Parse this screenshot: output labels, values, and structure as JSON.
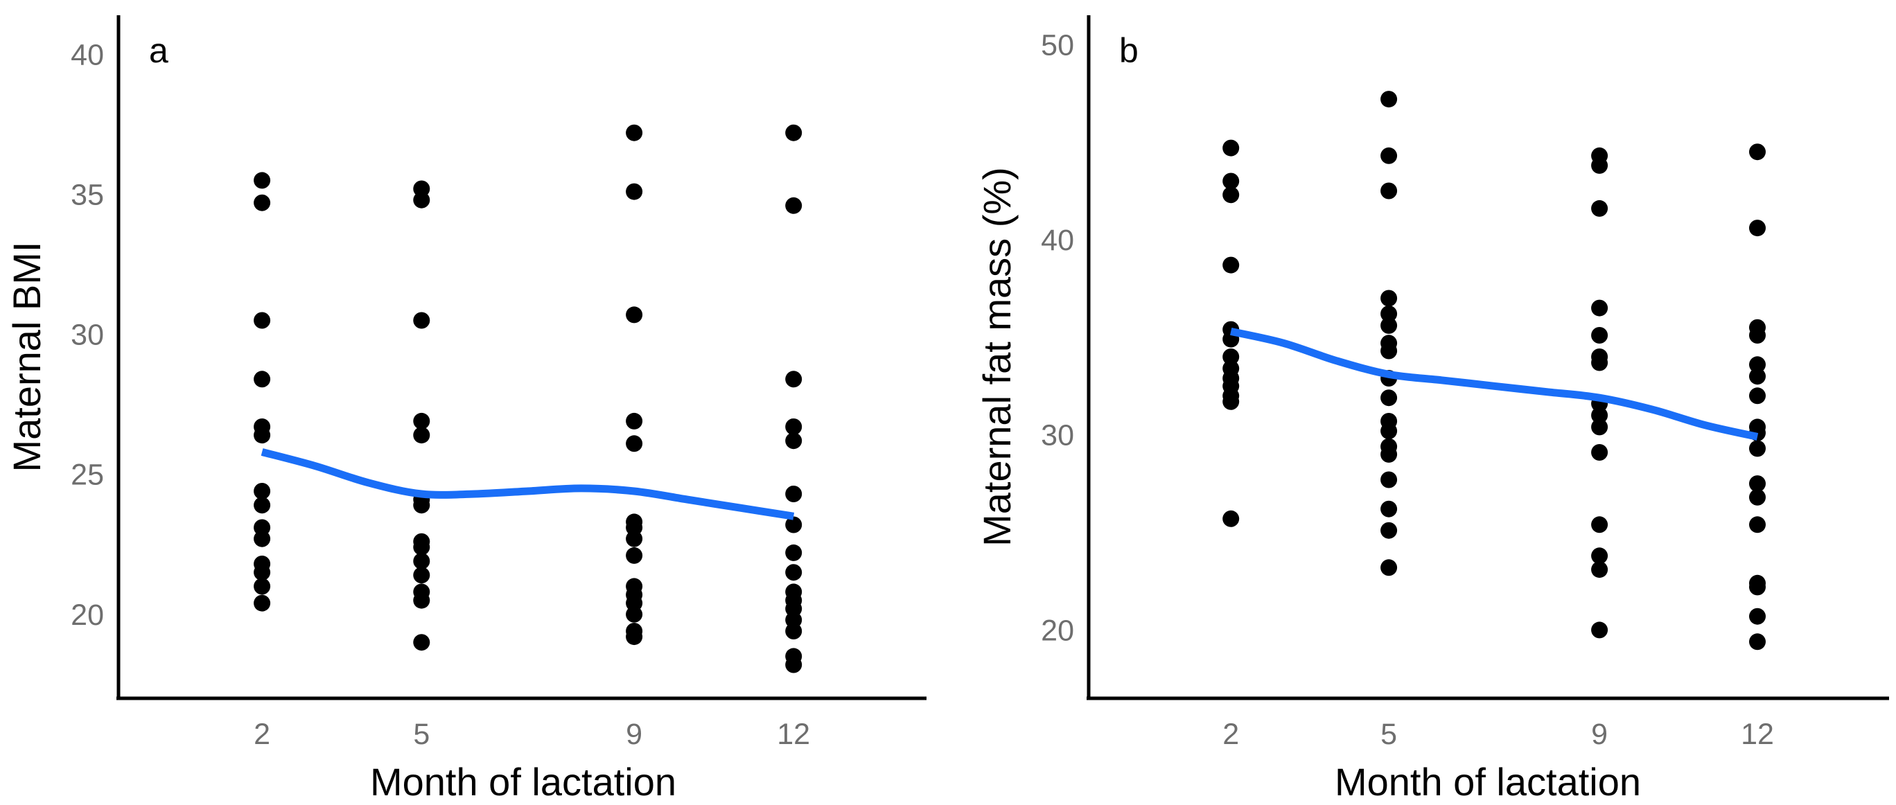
{
  "colors": {
    "points": "#000000",
    "trend": "#1a6ef7",
    "ticks": "#6e6e6e"
  },
  "chart_data": [
    {
      "type": "scatter",
      "panel_label": "a",
      "xlabel": "Month of lactation",
      "ylabel": "Maternal BMI",
      "x_ticks": [
        2,
        5,
        9,
        12
      ],
      "xlim": [
        -0.7,
        14.5
      ],
      "y_ticks": [
        20,
        25,
        30,
        35,
        40
      ],
      "ylim": [
        17.0,
        41.4
      ],
      "points": [
        [
          2,
          35.5
        ],
        [
          2,
          34.7
        ],
        [
          2,
          30.5
        ],
        [
          2,
          28.4
        ],
        [
          2,
          26.7
        ],
        [
          2,
          26.4
        ],
        [
          2,
          24.4
        ],
        [
          2,
          23.9
        ],
        [
          2,
          23.1
        ],
        [
          2,
          22.7
        ],
        [
          2,
          21.8
        ],
        [
          2,
          21.5
        ],
        [
          2,
          21.0
        ],
        [
          2,
          20.4
        ],
        [
          5,
          35.2
        ],
        [
          5,
          34.8
        ],
        [
          5,
          30.5
        ],
        [
          5,
          26.9
        ],
        [
          5,
          26.4
        ],
        [
          5,
          24.1
        ],
        [
          5,
          23.9
        ],
        [
          5,
          22.6
        ],
        [
          5,
          22.4
        ],
        [
          5,
          21.9
        ],
        [
          5,
          21.4
        ],
        [
          5,
          20.8
        ],
        [
          5,
          20.5
        ],
        [
          5,
          19.0
        ],
        [
          9,
          37.2
        ],
        [
          9,
          35.1
        ],
        [
          9,
          30.7
        ],
        [
          9,
          26.9
        ],
        [
          9,
          26.1
        ],
        [
          9,
          23.3
        ],
        [
          9,
          23.1
        ],
        [
          9,
          22.7
        ],
        [
          9,
          22.1
        ],
        [
          9,
          21.0
        ],
        [
          9,
          20.7
        ],
        [
          9,
          20.4
        ],
        [
          9,
          20.0
        ],
        [
          9,
          19.4
        ],
        [
          9,
          19.2
        ],
        [
          12,
          37.2
        ],
        [
          12,
          34.6
        ],
        [
          12,
          28.4
        ],
        [
          12,
          26.7
        ],
        [
          12,
          26.2
        ],
        [
          12,
          24.3
        ],
        [
          12,
          23.2
        ],
        [
          12,
          22.2
        ],
        [
          12,
          21.5
        ],
        [
          12,
          20.8
        ],
        [
          12,
          20.5
        ],
        [
          12,
          20.2
        ],
        [
          12,
          19.8
        ],
        [
          12,
          19.4
        ],
        [
          12,
          18.5
        ],
        [
          12,
          18.2
        ]
      ],
      "trend": {
        "x": [
          2,
          3,
          4,
          5,
          6,
          7,
          8,
          9,
          10,
          11,
          12
        ],
        "y": [
          25.8,
          25.3,
          24.7,
          24.3,
          24.3,
          24.4,
          24.5,
          24.4,
          24.1,
          23.8,
          23.5
        ]
      }
    },
    {
      "type": "scatter",
      "panel_label": "b",
      "xlabel": "Month of lactation",
      "ylabel": "Maternal fat mass (%)",
      "x_ticks": [
        2,
        5,
        9,
        12
      ],
      "xlim": [
        -0.7,
        14.5
      ],
      "y_ticks": [
        20,
        30,
        40,
        50
      ],
      "ylim": [
        16.5,
        51.5
      ],
      "points": [
        [
          2,
          44.7
        ],
        [
          2,
          43.0
        ],
        [
          2,
          42.3
        ],
        [
          2,
          38.7
        ],
        [
          2,
          35.4
        ],
        [
          2,
          34.9
        ],
        [
          2,
          34.0
        ],
        [
          2,
          33.4
        ],
        [
          2,
          32.9
        ],
        [
          2,
          32.5
        ],
        [
          2,
          32.0
        ],
        [
          2,
          31.7
        ],
        [
          2,
          25.7
        ],
        [
          5,
          47.2
        ],
        [
          5,
          44.3
        ],
        [
          5,
          42.5
        ],
        [
          5,
          37.0
        ],
        [
          5,
          36.2
        ],
        [
          5,
          35.6
        ],
        [
          5,
          34.7
        ],
        [
          5,
          34.3
        ],
        [
          5,
          32.9
        ],
        [
          5,
          31.9
        ],
        [
          5,
          30.7
        ],
        [
          5,
          30.2
        ],
        [
          5,
          29.4
        ],
        [
          5,
          29.0
        ],
        [
          5,
          27.7
        ],
        [
          5,
          26.2
        ],
        [
          5,
          25.1
        ],
        [
          5,
          23.2
        ],
        [
          9,
          44.3
        ],
        [
          9,
          43.8
        ],
        [
          9,
          41.6
        ],
        [
          9,
          36.5
        ],
        [
          9,
          35.1
        ],
        [
          9,
          34.0
        ],
        [
          9,
          33.7
        ],
        [
          9,
          31.6
        ],
        [
          9,
          31.0
        ],
        [
          9,
          30.4
        ],
        [
          9,
          29.1
        ],
        [
          9,
          25.4
        ],
        [
          9,
          23.8
        ],
        [
          9,
          23.1
        ],
        [
          9,
          20.0
        ],
        [
          12,
          44.5
        ],
        [
          12,
          40.6
        ],
        [
          12,
          35.5
        ],
        [
          12,
          35.1
        ],
        [
          12,
          33.6
        ],
        [
          12,
          33.0
        ],
        [
          12,
          32.0
        ],
        [
          12,
          30.4
        ],
        [
          12,
          30.1
        ],
        [
          12,
          29.3
        ],
        [
          12,
          27.5
        ],
        [
          12,
          26.8
        ],
        [
          12,
          25.4
        ],
        [
          12,
          22.4
        ],
        [
          12,
          22.2
        ],
        [
          12,
          20.7
        ],
        [
          12,
          19.4
        ]
      ],
      "trend": {
        "x": [
          2,
          3,
          4,
          5,
          6,
          7,
          8,
          9,
          10,
          11,
          12
        ],
        "y": [
          35.3,
          34.7,
          33.8,
          33.1,
          32.8,
          32.5,
          32.2,
          31.9,
          31.3,
          30.5,
          29.9
        ]
      }
    }
  ]
}
